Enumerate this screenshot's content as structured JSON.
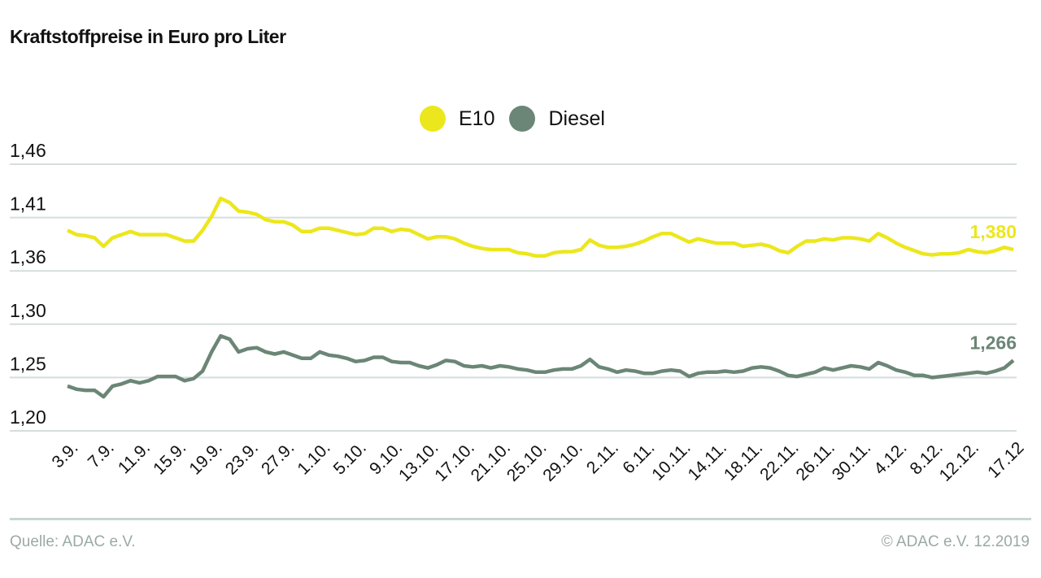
{
  "chart_data": {
    "type": "line",
    "title": "Kraftstoffpreise in Euro pro Liter",
    "y_ticks": [
      "1,46",
      "1,41",
      "1,36",
      "1,30",
      "1,25",
      "1,20"
    ],
    "y_tick_values": [
      1.46,
      1.41,
      1.36,
      1.3,
      1.25,
      1.2
    ],
    "y_axis_note": "broken scale: ticks evenly spaced, gap 1,36 to 1,30",
    "x_tick_labels": [
      "3.9.",
      "7.9.",
      "11.9.",
      "15.9.",
      "19.9.",
      "23.9.",
      "27.9.",
      "1.10.",
      "5.10.",
      "9.10.",
      "13.10.",
      "17.10.",
      "21.10.",
      "25.10.",
      "29.10.",
      "2.11.",
      "6.11.",
      "10.11.",
      "14.11.",
      "18.11.",
      "22.11.",
      "26.11.",
      "30.11.",
      "4.12.",
      "8.12.",
      "12.12.",
      "17.12"
    ],
    "x_range": [
      "3.9.2019",
      "17.12.2019"
    ],
    "grid": "horizontal",
    "legend": "top-center",
    "series": [
      {
        "name": "E10",
        "color": "#ece71c",
        "end_label": "1,380",
        "values": [
          1.398,
          1.394,
          1.393,
          1.391,
          1.383,
          1.391,
          1.394,
          1.397,
          1.394,
          1.394,
          1.394,
          1.394,
          1.391,
          1.388,
          1.388,
          1.398,
          1.411,
          1.428,
          1.424,
          1.416,
          1.415,
          1.413,
          1.408,
          1.406,
          1.406,
          1.403,
          1.397,
          1.397,
          1.4,
          1.4,
          1.398,
          1.396,
          1.394,
          1.395,
          1.4,
          1.4,
          1.397,
          1.399,
          1.398,
          1.394,
          1.39,
          1.392,
          1.392,
          1.39,
          1.386,
          1.383,
          1.381,
          1.38,
          1.38,
          1.38,
          1.377,
          1.376,
          1.374,
          1.374,
          1.377,
          1.378,
          1.378,
          1.38,
          1.389,
          1.384,
          1.382,
          1.382,
          1.383,
          1.385,
          1.388,
          1.392,
          1.395,
          1.395,
          1.391,
          1.387,
          1.39,
          1.388,
          1.386,
          1.386,
          1.386,
          1.383,
          1.384,
          1.385,
          1.383,
          1.379,
          1.377,
          1.383,
          1.388,
          1.388,
          1.39,
          1.389,
          1.391,
          1.391,
          1.39,
          1.388,
          1.395,
          1.391,
          1.386,
          1.382,
          1.379,
          1.376,
          1.375,
          1.376,
          1.376,
          1.377,
          1.38,
          1.378,
          1.377,
          1.379,
          1.382,
          1.38
        ]
      },
      {
        "name": "Diesel",
        "color": "#6b8676",
        "end_label": "1,266",
        "values": [
          1.242,
          1.239,
          1.238,
          1.238,
          1.232,
          1.242,
          1.244,
          1.247,
          1.245,
          1.247,
          1.251,
          1.251,
          1.251,
          1.247,
          1.249,
          1.256,
          1.274,
          1.289,
          1.286,
          1.274,
          1.277,
          1.278,
          1.274,
          1.272,
          1.274,
          1.271,
          1.268,
          1.268,
          1.274,
          1.271,
          1.27,
          1.268,
          1.265,
          1.266,
          1.269,
          1.269,
          1.265,
          1.264,
          1.264,
          1.261,
          1.259,
          1.262,
          1.266,
          1.265,
          1.261,
          1.26,
          1.261,
          1.259,
          1.261,
          1.26,
          1.258,
          1.257,
          1.255,
          1.255,
          1.257,
          1.258,
          1.258,
          1.261,
          1.267,
          1.26,
          1.258,
          1.255,
          1.257,
          1.256,
          1.254,
          1.254,
          1.256,
          1.257,
          1.256,
          1.251,
          1.254,
          1.255,
          1.255,
          1.256,
          1.255,
          1.256,
          1.259,
          1.26,
          1.259,
          1.256,
          1.252,
          1.251,
          1.253,
          1.255,
          1.259,
          1.257,
          1.259,
          1.261,
          1.26,
          1.258,
          1.264,
          1.261,
          1.257,
          1.255,
          1.252,
          1.252,
          1.25,
          1.251,
          1.252,
          1.253,
          1.254,
          1.255,
          1.254,
          1.256,
          1.259,
          1.266
        ]
      }
    ]
  },
  "footer": {
    "source": "Quelle: ADAC e.V.",
    "copyright": "© ADAC e.V. 12.2019"
  }
}
